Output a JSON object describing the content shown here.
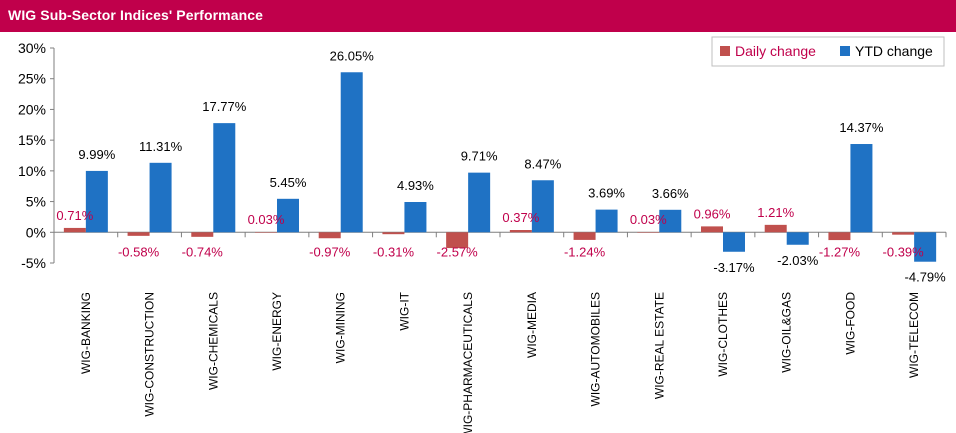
{
  "title": "WIG Sub-Sector Indices' Performance",
  "colors": {
    "title_bar": "#c0004b",
    "daily": "#c0504d",
    "ytd": "#1f72c4",
    "daily_label": "#c0004b"
  },
  "chart_data": {
    "type": "bar",
    "title": "WIG Sub-Sector Indices' Performance",
    "xlabel": "",
    "ylabel": "",
    "ylim": [
      -5,
      30
    ],
    "yticks": [
      "30%",
      "25%",
      "20%",
      "15%",
      "10%",
      "5%",
      "0%",
      "-5%"
    ],
    "grid": false,
    "legend_position": "top-right",
    "categories": [
      "WIG-BANKING",
      "WIG-CONSTRUCTION",
      "WIG-CHEMICALS",
      "WIG-ENERGY",
      "WIG-MINING",
      "WIG-IT",
      "WIG-PHARMACEUTICALS",
      "WIG-MEDIA",
      "WIG-AUTOMOBILES",
      "WIG-REAL ESTATE",
      "WIG-CLOTHES",
      "WIG-OIL&GAS",
      "WIG-FOOD",
      "WIG-TELECOM"
    ],
    "series": [
      {
        "name": "Daily change",
        "values": [
          0.71,
          -0.58,
          -0.74,
          0.03,
          -0.97,
          -0.31,
          -2.57,
          0.37,
          -1.24,
          0.03,
          0.96,
          1.21,
          -1.27,
          -0.39
        ],
        "labels": [
          "0.71%",
          "-0.58%",
          "-0.74%",
          "0.03%",
          "-0.97%",
          "-0.31%",
          "-2.57%",
          "0.37%",
          "-1.24%",
          "0.03%",
          "0.96%",
          "1.21%",
          "-1.27%",
          "-0.39%"
        ]
      },
      {
        "name": "YTD change",
        "values": [
          9.99,
          11.31,
          17.77,
          5.45,
          26.05,
          4.93,
          9.71,
          8.47,
          3.69,
          3.66,
          -3.17,
          -2.03,
          14.37,
          -4.79
        ],
        "labels": [
          "9.99%",
          "11.31%",
          "17.77%",
          "5.45%",
          "26.05%",
          "4.93%",
          "9.71%",
          "8.47%",
          "3.69%",
          "3.66%",
          "-3.17%",
          "-2.03%",
          "14.37%",
          "-4.79%"
        ]
      }
    ]
  }
}
